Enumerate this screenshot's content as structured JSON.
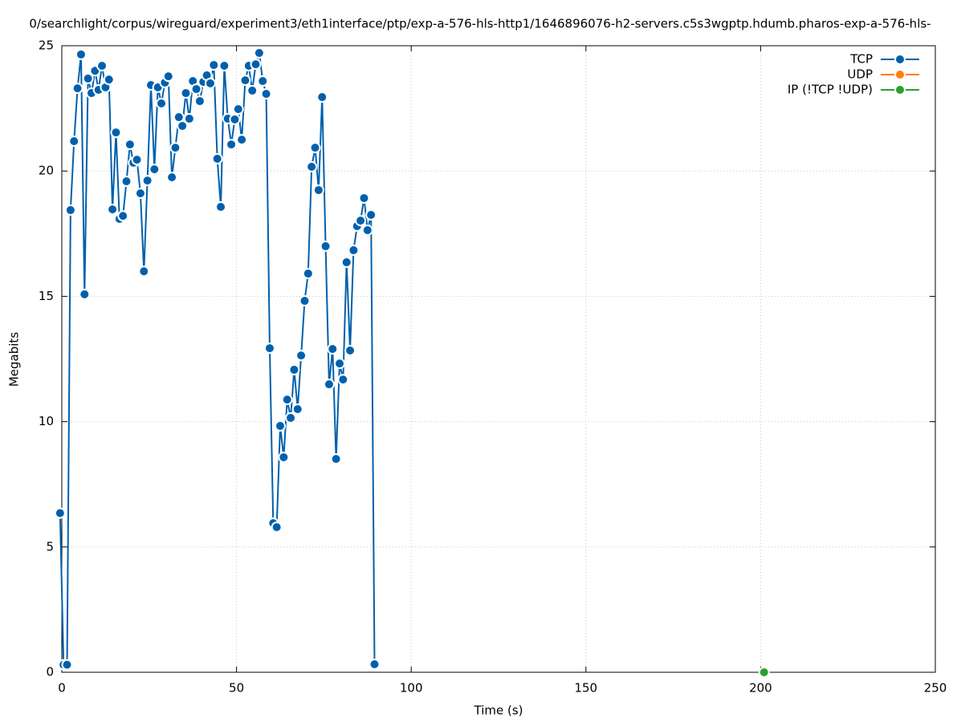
{
  "chart_data": {
    "type": "line",
    "title": "0/searchlight/corpus/wireguard/experiment3/eth1interface/ptp/exp-a-576-hls-http1/1646896076-h2-servers.c5s3wgptp.hdumb.pharos-exp-a-576-hls-",
    "x_label": "Time (s)",
    "y_label": "Megabits",
    "xlim": [
      0,
      250
    ],
    "ylim": [
      0,
      25
    ],
    "xticks": [
      0,
      50,
      100,
      150,
      200,
      250
    ],
    "yticks": [
      0,
      5,
      10,
      15,
      20,
      25
    ],
    "grid": true,
    "legend": "top-right",
    "series": [
      {
        "name": "TCP",
        "color": "#0060ad",
        "x": [
          -0.5,
          0.5,
          1.5,
          2.5,
          3.5,
          4.5,
          5.5,
          6.5,
          7.5,
          8.5,
          9.5,
          10.5,
          11.5,
          12.5,
          13.5,
          14.5,
          15.5,
          16.5,
          17.5,
          18.5,
          19.5,
          20.5,
          21.5,
          22.5,
          23.5,
          24.5,
          25.5,
          26.5,
          27.5,
          28.5,
          29.5,
          30.5,
          31.5,
          32.5,
          33.5,
          34.5,
          35.5,
          36.5,
          37.5,
          38.5,
          39.5,
          40.5,
          41.5,
          42.5,
          43.5,
          44.5,
          45.5,
          46.5,
          47.5,
          48.5,
          49.5,
          50.5,
          51.5,
          52.5,
          53.5,
          54.5,
          55.5,
          56.5,
          57.5,
          58.5,
          59.5,
          60.5,
          61.5,
          62.5,
          63.5,
          64.5,
          65.5,
          66.5,
          67.5,
          68.5,
          69.5,
          70.5,
          71.5,
          72.5,
          73.5,
          74.5,
          75.5,
          76.5,
          77.5,
          78.5,
          79.5,
          80.5,
          81.5,
          82.5,
          83.5,
          84.5,
          85.5,
          86.5,
          87.5,
          88.5,
          89.5
        ],
        "values": [
          6.35,
          0.3,
          0.3,
          18.44,
          21.19,
          23.3,
          24.65,
          15.08,
          23.69,
          23.11,
          24.0,
          23.24,
          24.2,
          23.34,
          23.65,
          18.47,
          21.54,
          18.09,
          18.21,
          19.59,
          21.06,
          20.33,
          20.45,
          19.11,
          16.0,
          19.62,
          23.43,
          20.07,
          23.34,
          22.7,
          23.53,
          23.78,
          19.75,
          20.93,
          22.15,
          21.8,
          23.11,
          22.09,
          23.59,
          23.27,
          22.79,
          23.56,
          23.82,
          23.5,
          24.23,
          20.49,
          18.57,
          24.2,
          22.09,
          21.06,
          22.06,
          22.47,
          21.25,
          23.62,
          24.2,
          23.21,
          24.26,
          24.71,
          23.59,
          23.08,
          12.93,
          5.95,
          5.79,
          9.83,
          8.58,
          10.88,
          10.15,
          12.07,
          10.5,
          12.64,
          14.82,
          15.91,
          20.17,
          20.93,
          19.24,
          22.95,
          17.0,
          11.49,
          12.9,
          8.51,
          12.32,
          11.68,
          16.36,
          12.84,
          16.84,
          17.8,
          18.02,
          18.92,
          17.64,
          18.25,
          0.32
        ]
      },
      {
        "name": "UDP",
        "color": "#ff7f0e",
        "x": [],
        "values": []
      },
      {
        "name": "IP (!TCP  !UDP)",
        "color": "#2ca02c",
        "x": [
          201
        ],
        "values": [
          0
        ]
      }
    ]
  }
}
